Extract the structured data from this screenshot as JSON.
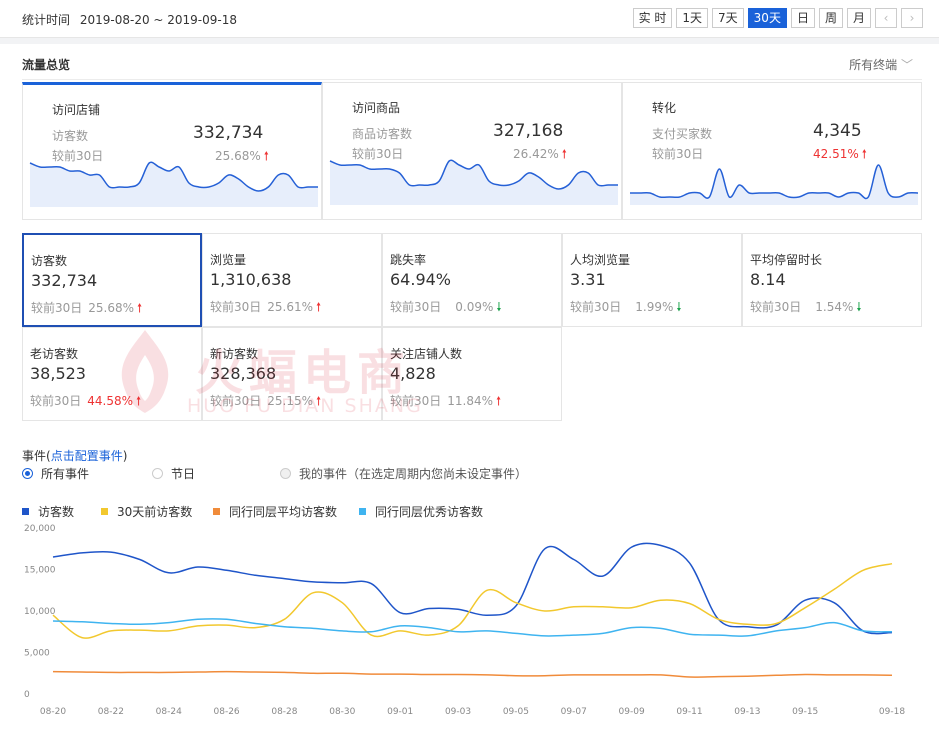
{
  "header": {
    "stat_label": "统计时间",
    "date_range": "2019-08-20 ~ 2019-09-18",
    "period_buttons": [
      "实 时",
      "1天",
      "7天",
      "30天",
      "日",
      "周",
      "月"
    ],
    "active_period": "30天",
    "prev_icon": "chevron-left-icon",
    "next_icon": "chevron-right-icon"
  },
  "overview": {
    "title": "流量总览",
    "terminal_select": "所有终端",
    "cards": [
      {
        "title": "访问店铺",
        "metric": "访客数",
        "value": "332,734",
        "cmp_label": "较前30日",
        "cmp_value": "25.68%",
        "trend": "up",
        "highlight": false
      },
      {
        "title": "访问商品",
        "metric": "商品访客数",
        "value": "327,168",
        "cmp_label": "较前30日",
        "cmp_value": "26.42%",
        "trend": "up",
        "highlight": false
      },
      {
        "title": "转化",
        "metric": "支付买家数",
        "value": "4,345",
        "cmp_label": "较前30日",
        "cmp_value": "42.51%",
        "trend": "up",
        "highlight": true
      }
    ]
  },
  "kpis": [
    {
      "name": "访客数",
      "value": "332,734",
      "cmp_label": "较前30日",
      "pct": "25.68%",
      "trend": "up",
      "red": false
    },
    {
      "name": "浏览量",
      "value": "1,310,638",
      "cmp_label": "较前30日",
      "pct": "25.61%",
      "trend": "up",
      "red": false
    },
    {
      "name": "跳失率",
      "value": "64.94%",
      "cmp_label": "较前30日",
      "pct": "0.09%",
      "trend": "down",
      "red": false
    },
    {
      "name": "人均浏览量",
      "value": "3.31",
      "cmp_label": "较前30日",
      "pct": "1.99%",
      "trend": "down",
      "red": false
    },
    {
      "name": "平均停留时长",
      "value": "8.14",
      "cmp_label": "较前30日",
      "pct": "1.54%",
      "trend": "down",
      "red": false
    },
    {
      "name": "老访客数",
      "value": "38,523",
      "cmp_label": "较前30日",
      "pct": "44.58%",
      "trend": "up",
      "red": true
    },
    {
      "name": "新访客数",
      "value": "328,368",
      "cmp_label": "较前30日",
      "pct": "25.15%",
      "trend": "up",
      "red": false
    },
    {
      "name": "关注店铺人数",
      "value": "4,828",
      "cmp_label": "较前30日",
      "pct": "11.84%",
      "trend": "up",
      "red": false
    }
  ],
  "watermark": {
    "main": "火蝠电商",
    "sub": "HUO FU DIAN SHANG"
  },
  "events": {
    "label": "事件",
    "paren_open": "(",
    "config_link": "点击配置事件",
    "paren_close": ")",
    "options": [
      {
        "label": "所有事件",
        "selected": true
      },
      {
        "label": "节日",
        "selected": false
      },
      {
        "label": "我的事件（在选定周期内您尚未设定事件）",
        "selected": false,
        "disabled": true
      }
    ]
  },
  "chart_data": {
    "type": "line",
    "ylim": [
      0,
      20000
    ],
    "yticks": [
      "20,000",
      "15,000",
      "10,000",
      "5,000",
      "0"
    ],
    "x_tick_labels": [
      "08-20",
      "08-22",
      "08-24",
      "08-26",
      "08-28",
      "08-30",
      "09-01",
      "09-03",
      "09-05",
      "09-07",
      "09-09",
      "09-11",
      "09-13",
      "09-15",
      "09-18"
    ],
    "x": [
      "08-20",
      "08-21",
      "08-22",
      "08-23",
      "08-24",
      "08-25",
      "08-26",
      "08-27",
      "08-28",
      "08-29",
      "08-30",
      "08-31",
      "09-01",
      "09-02",
      "09-03",
      "09-04",
      "09-05",
      "09-06",
      "09-07",
      "09-08",
      "09-09",
      "09-10",
      "09-11",
      "09-12",
      "09-13",
      "09-14",
      "09-15",
      "09-16",
      "09-17",
      "09-18"
    ],
    "series": [
      {
        "name": "访客数",
        "color": "#1f55c9",
        "values": [
          16500,
          17000,
          17100,
          16200,
          14600,
          15300,
          14900,
          14300,
          13900,
          13500,
          13400,
          13300,
          9800,
          10300,
          10200,
          9500,
          10600,
          17500,
          16200,
          14200,
          17700,
          17900,
          15800,
          9000,
          8100,
          8300,
          11300,
          11000,
          7600,
          7400
        ]
      },
      {
        "name": "30天前访客数",
        "color": "#f2c82e",
        "values": [
          9500,
          6800,
          7600,
          7700,
          7600,
          8200,
          8300,
          8000,
          9000,
          12200,
          11000,
          7100,
          7600,
          7100,
          8200,
          12500,
          11000,
          10000,
          10500,
          10500,
          10400,
          11300,
          10900,
          9000,
          8400,
          8500,
          10400,
          12600,
          14900,
          15700
        ]
      },
      {
        "name": "同行同层平均访客数",
        "color": "#f08b3a",
        "values": [
          2700,
          2650,
          2600,
          2600,
          2600,
          2650,
          2700,
          2650,
          2600,
          2500,
          2500,
          2400,
          2400,
          2350,
          2350,
          2300,
          2200,
          2200,
          2300,
          2300,
          2300,
          2300,
          2050,
          2100,
          2150,
          2250,
          2350,
          2300,
          2300,
          2250
        ]
      },
      {
        "name": "同行同层优秀访客数",
        "color": "#3fb4f0",
        "values": [
          8800,
          8700,
          8500,
          8400,
          8600,
          9000,
          9000,
          8500,
          8100,
          7900,
          7600,
          7500,
          8200,
          8000,
          7500,
          7600,
          7300,
          7000,
          7100,
          7300,
          8000,
          7900,
          7200,
          7100,
          7000,
          7600,
          8000,
          8600,
          7600,
          7500
        ]
      }
    ]
  },
  "mini_charts": [
    {
      "values": [
        11,
        10,
        10,
        10,
        9,
        9,
        8,
        8,
        5,
        5,
        5,
        6,
        11,
        10,
        9,
        10,
        6,
        5,
        5,
        6,
        8,
        7,
        5,
        4,
        5,
        8,
        8,
        5,
        5,
        5
      ]
    },
    {
      "values": [
        11,
        10,
        10,
        10,
        9,
        9,
        9,
        8,
        5,
        5,
        5,
        6,
        11,
        10,
        9,
        10,
        6,
        5,
        5,
        6,
        8,
        7,
        5,
        4,
        5,
        8,
        8,
        5,
        5,
        5
      ]
    },
    {
      "values": [
        3,
        3,
        3,
        2,
        2,
        2,
        3,
        3,
        2,
        9,
        2,
        5,
        3,
        3,
        3,
        3,
        2,
        2,
        3,
        3,
        3,
        2,
        3,
        3,
        2,
        10,
        3,
        2,
        3,
        3
      ]
    }
  ]
}
